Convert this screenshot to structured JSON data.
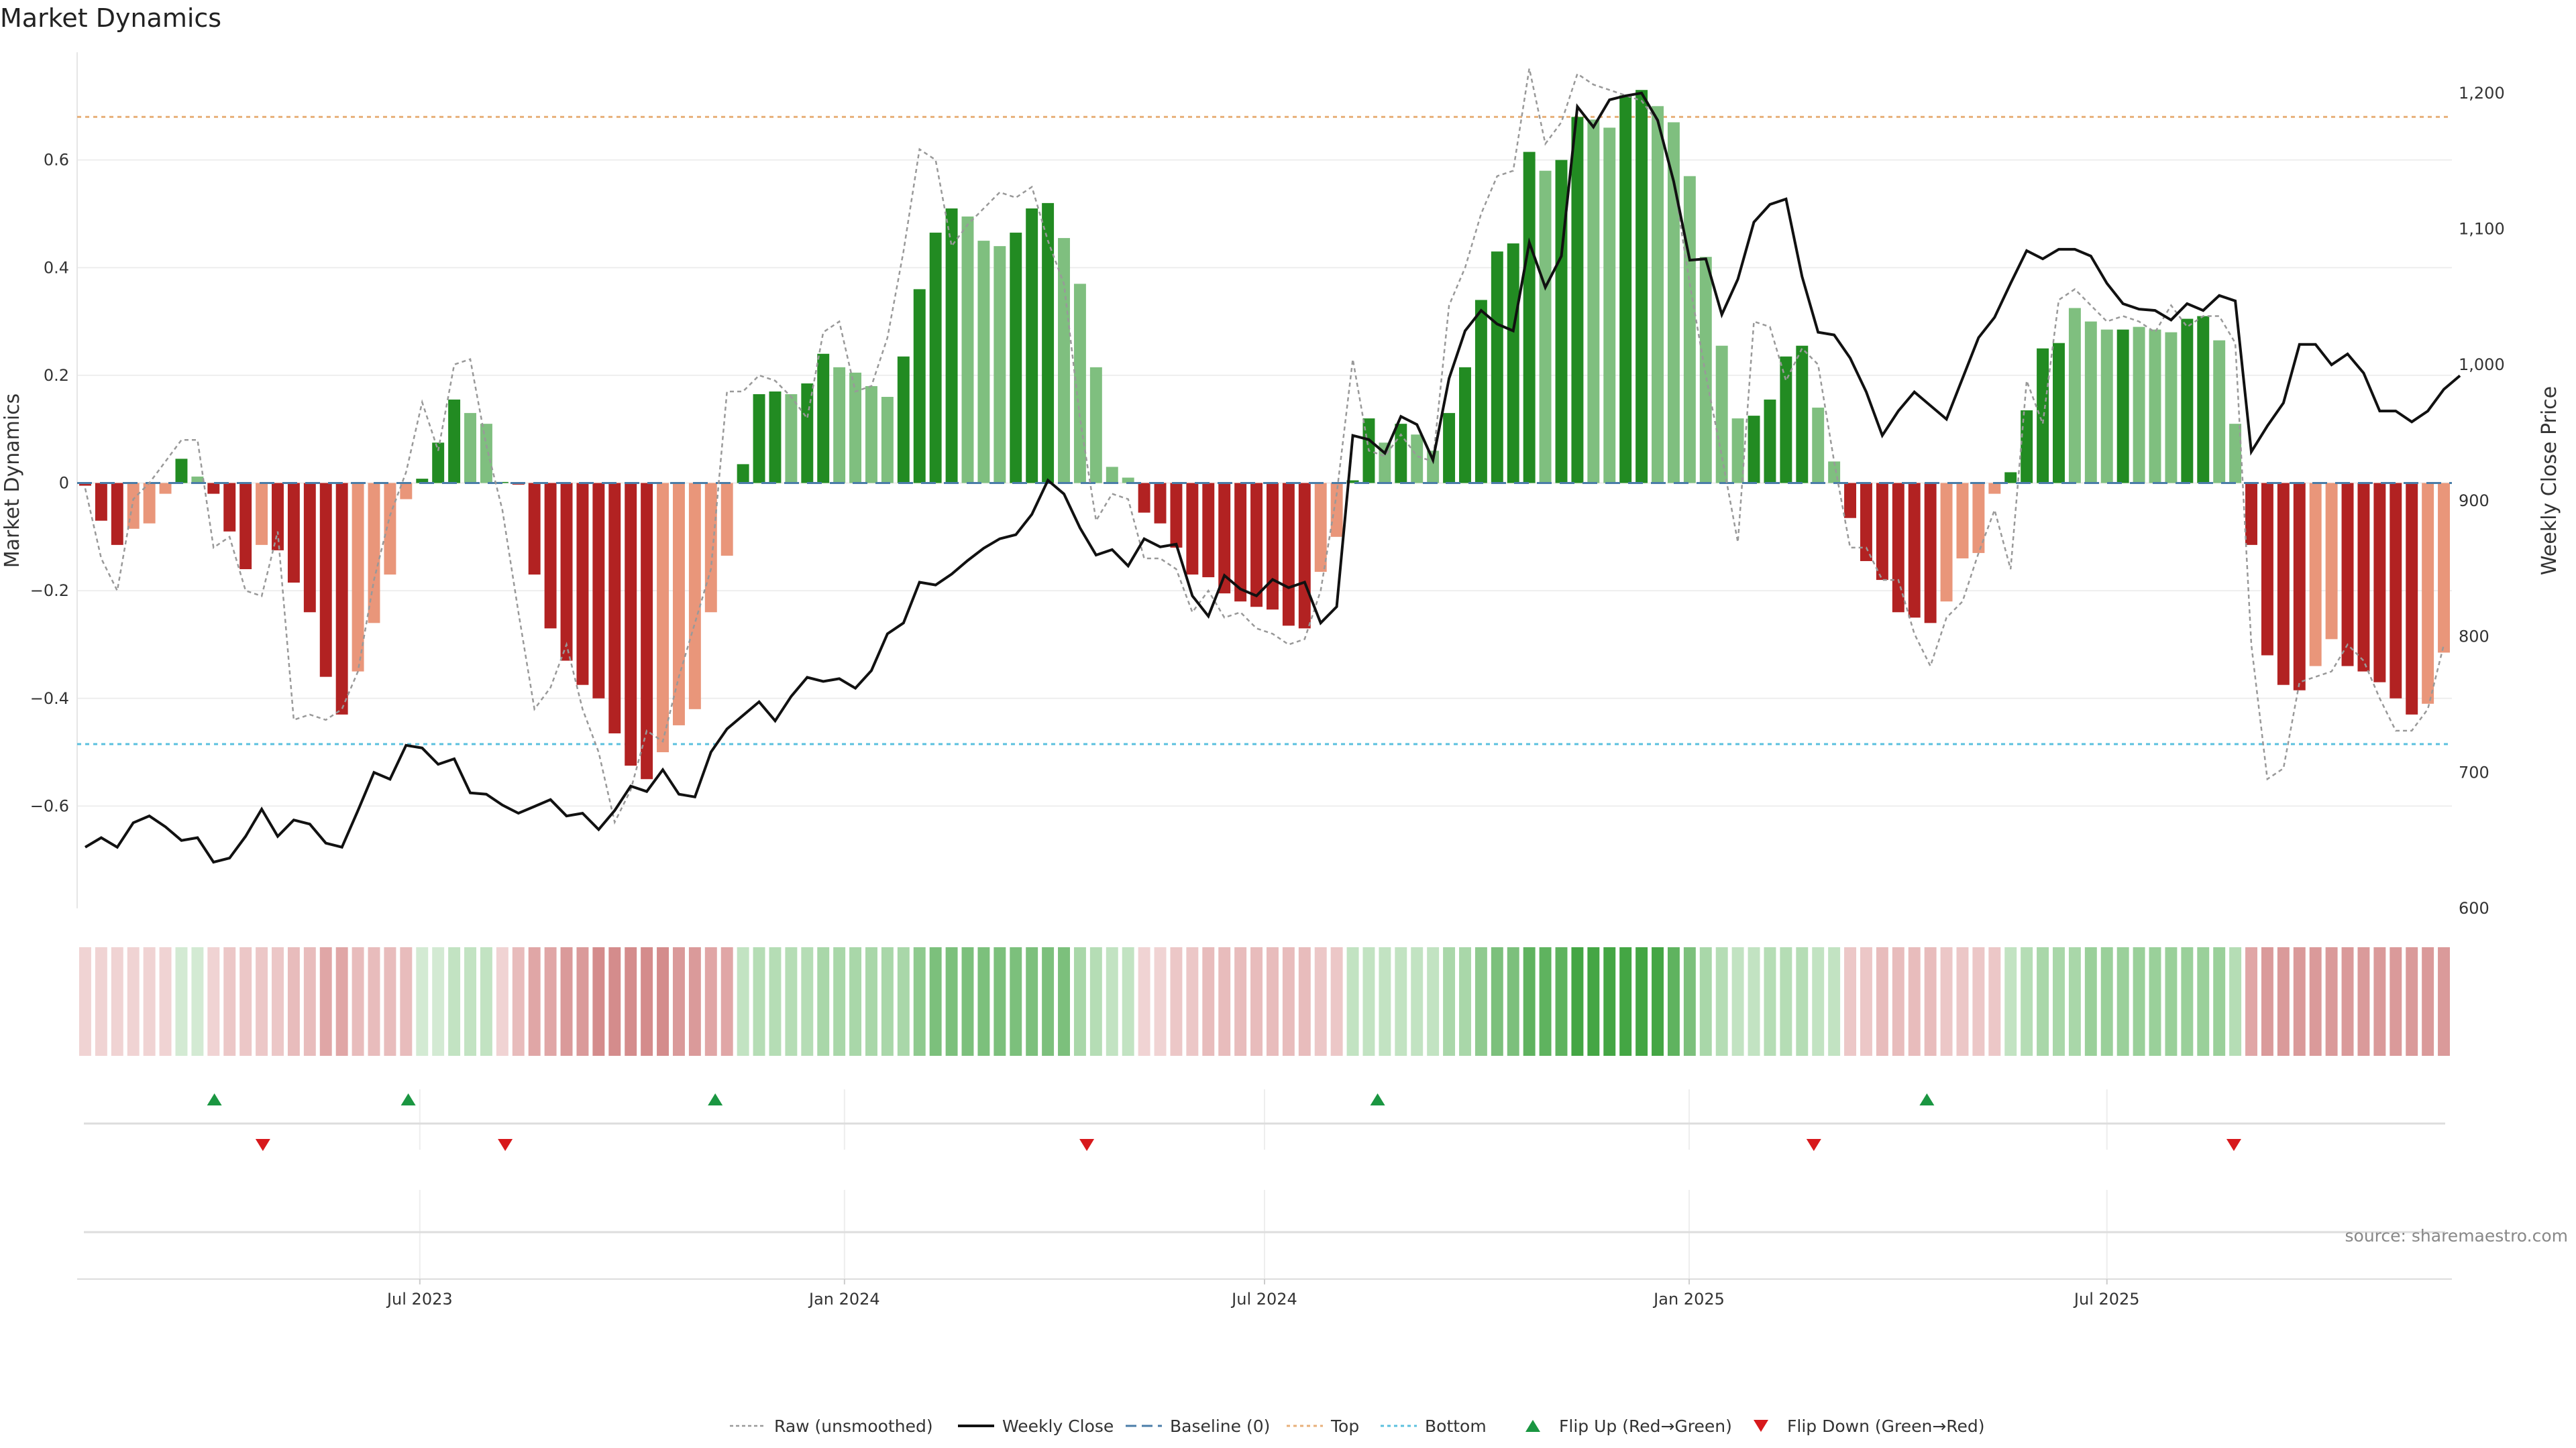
{
  "chart_data": {
    "type": "bar",
    "title": "Market Dynamics",
    "ylabel_left": "Market Dynamics",
    "ylabel_right": "Weekly Close Price",
    "source": "source: sharemaestro.com",
    "left_ylim": [
      -0.79,
      0.8
    ],
    "left_ticks": [
      -0.6,
      -0.4,
      -0.2,
      0,
      0.2,
      0.4,
      0.6
    ],
    "left_tick_labels": [
      "−0.6",
      "−0.4",
      "−0.2",
      "0",
      "0.2",
      "0.4",
      "0.6"
    ],
    "right_ylim": [
      600,
      1230
    ],
    "right_ticks": [
      600,
      700,
      800,
      900,
      1000,
      1100,
      1200
    ],
    "right_tick_labels": [
      "600",
      "700",
      "800",
      "900",
      "1,000",
      "1,100",
      "1,200"
    ],
    "x_start_date": "2023-02-06",
    "x_end_date": "2025-11-24",
    "x_ticks": [
      "2023-07-01",
      "2024-01-01",
      "2024-07-01",
      "2025-01-01",
      "2025-07-01"
    ],
    "x_tick_labels": [
      "Jul 2023",
      "Jan 2024",
      "Jul 2024",
      "Jan 2025",
      "Jul 2025"
    ],
    "top_line": 0.68,
    "bottom_line": -0.485,
    "bar_values": [
      -0.005,
      -0.07,
      -0.115,
      -0.085,
      -0.075,
      -0.02,
      0.045,
      0.012,
      -0.02,
      -0.09,
      -0.16,
      -0.115,
      -0.125,
      -0.185,
      -0.24,
      -0.36,
      -0.43,
      -0.35,
      -0.26,
      -0.17,
      -0.03,
      0.008,
      0.075,
      0.155,
      0.13,
      0.11,
      0.002,
      -0.003,
      -0.17,
      -0.27,
      -0.33,
      -0.375,
      -0.4,
      -0.465,
      -0.525,
      -0.55,
      -0.5,
      -0.45,
      -0.42,
      -0.24,
      -0.135,
      0.035,
      0.165,
      0.17,
      0.165,
      0.185,
      0.24,
      0.215,
      0.205,
      0.18,
      0.16,
      0.235,
      0.36,
      0.465,
      0.51,
      0.495,
      0.45,
      0.44,
      0.465,
      0.51,
      0.52,
      0.455,
      0.37,
      0.215,
      0.03,
      0.01,
      -0.055,
      -0.075,
      -0.12,
      -0.17,
      -0.175,
      -0.205,
      -0.22,
      -0.23,
      -0.235,
      -0.265,
      -0.27,
      -0.165,
      -0.1,
      0.005,
      0.12,
      0.075,
      0.11,
      0.09,
      0.06,
      0.13,
      0.215,
      0.34,
      0.43,
      0.445,
      0.615,
      0.58,
      0.6,
      0.68,
      0.675,
      0.66,
      0.72,
      0.73,
      0.7,
      0.67,
      0.57,
      0.42,
      0.255,
      0.12,
      0.125,
      0.155,
      0.235,
      0.255,
      0.14,
      0.04,
      -0.065,
      -0.145,
      -0.18,
      -0.24,
      -0.25,
      -0.26,
      -0.22,
      -0.14,
      -0.13,
      -0.02,
      0.02,
      0.135,
      0.25,
      0.26,
      0.325,
      0.3,
      0.285,
      0.285,
      0.29,
      0.285,
      0.28,
      0.305,
      0.31,
      0.265,
      0.11,
      -0.115,
      -0.32,
      -0.375,
      -0.385,
      -0.34,
      -0.29,
      -0.34,
      -0.35,
      -0.37,
      -0.4,
      -0.43,
      -0.41,
      -0.315
    ],
    "bar_colors": [
      "#b22222",
      "#b22222",
      "#b22222",
      "#e9967a",
      "#e9967a",
      "#e9967a",
      "#228b22",
      "#7fbf7f",
      "#b22222",
      "#b22222",
      "#b22222",
      "#e9967a",
      "#b22222",
      "#b22222",
      "#b22222",
      "#b22222",
      "#b22222",
      "#e9967a",
      "#e9967a",
      "#e9967a",
      "#e9967a",
      "#228b22",
      "#228b22",
      "#228b22",
      "#7fbf7f",
      "#7fbf7f",
      "#228b22",
      "#b22222",
      "#b22222",
      "#b22222",
      "#b22222",
      "#b22222",
      "#b22222",
      "#b22222",
      "#b22222",
      "#b22222",
      "#e9967a",
      "#e9967a",
      "#e9967a",
      "#e9967a",
      "#e9967a",
      "#228b22",
      "#228b22",
      "#228b22",
      "#7fbf7f",
      "#228b22",
      "#228b22",
      "#7fbf7f",
      "#7fbf7f",
      "#7fbf7f",
      "#7fbf7f",
      "#228b22",
      "#228b22",
      "#228b22",
      "#228b22",
      "#7fbf7f",
      "#7fbf7f",
      "#7fbf7f",
      "#228b22",
      "#228b22",
      "#228b22",
      "#7fbf7f",
      "#7fbf7f",
      "#7fbf7f",
      "#7fbf7f",
      "#7fbf7f",
      "#b22222",
      "#b22222",
      "#b22222",
      "#b22222",
      "#b22222",
      "#b22222",
      "#b22222",
      "#b22222",
      "#b22222",
      "#b22222",
      "#b22222",
      "#e9967a",
      "#e9967a",
      "#228b22",
      "#228b22",
      "#7fbf7f",
      "#228b22",
      "#7fbf7f",
      "#7fbf7f",
      "#228b22",
      "#228b22",
      "#228b22",
      "#228b22",
      "#228b22",
      "#228b22",
      "#7fbf7f",
      "#228b22",
      "#228b22",
      "#7fbf7f",
      "#7fbf7f",
      "#228b22",
      "#228b22",
      "#7fbf7f",
      "#7fbf7f",
      "#7fbf7f",
      "#7fbf7f",
      "#7fbf7f",
      "#7fbf7f",
      "#228b22",
      "#228b22",
      "#228b22",
      "#228b22",
      "#7fbf7f",
      "#7fbf7f",
      "#b22222",
      "#b22222",
      "#b22222",
      "#b22222",
      "#b22222",
      "#b22222",
      "#e9967a",
      "#e9967a",
      "#e9967a",
      "#e9967a",
      "#228b22",
      "#228b22",
      "#228b22",
      "#228b22",
      "#7fbf7f",
      "#7fbf7f",
      "#7fbf7f",
      "#228b22",
      "#7fbf7f",
      "#7fbf7f",
      "#7fbf7f",
      "#228b22",
      "#228b22",
      "#7fbf7f",
      "#7fbf7f",
      "#b22222",
      "#b22222",
      "#b22222",
      "#b22222",
      "#e9967a",
      "#e9967a",
      "#b22222",
      "#b22222",
      "#b22222",
      "#b22222",
      "#b22222",
      "#e9967a",
      "#e9967a"
    ],
    "raw_values": [
      -0.01,
      -0.14,
      -0.2,
      -0.03,
      0.0,
      0.04,
      0.08,
      0.08,
      -0.12,
      -0.1,
      -0.2,
      -0.21,
      -0.09,
      -0.44,
      -0.43,
      -0.44,
      -0.42,
      -0.35,
      -0.18,
      -0.06,
      0.02,
      0.15,
      0.06,
      0.22,
      0.23,
      0.07,
      -0.05,
      -0.24,
      -0.42,
      -0.38,
      -0.3,
      -0.42,
      -0.5,
      -0.63,
      -0.57,
      -0.46,
      -0.48,
      -0.36,
      -0.26,
      -0.16,
      0.17,
      0.17,
      0.2,
      0.19,
      0.16,
      0.12,
      0.28,
      0.3,
      0.17,
      0.18,
      0.27,
      0.43,
      0.62,
      0.6,
      0.44,
      0.48,
      0.51,
      0.54,
      0.53,
      0.55,
      0.45,
      0.37,
      0.12,
      -0.07,
      -0.02,
      -0.03,
      -0.14,
      -0.14,
      -0.16,
      -0.24,
      -0.2,
      -0.25,
      -0.24,
      -0.27,
      -0.28,
      -0.3,
      -0.29,
      -0.2,
      -0.02,
      0.23,
      0.06,
      0.05,
      0.09,
      0.05,
      0.04,
      0.33,
      0.4,
      0.5,
      0.57,
      0.58,
      0.77,
      0.63,
      0.67,
      0.76,
      0.74,
      0.73,
      0.72,
      0.71,
      0.67,
      0.56,
      0.37,
      0.2,
      0.05,
      -0.11,
      0.3,
      0.29,
      0.19,
      0.25,
      0.22,
      0.04,
      -0.12,
      -0.12,
      -0.18,
      -0.18,
      -0.28,
      -0.34,
      -0.25,
      -0.22,
      -0.13,
      -0.05,
      -0.16,
      0.19,
      0.11,
      0.34,
      0.36,
      0.33,
      0.3,
      0.31,
      0.3,
      0.28,
      0.33,
      0.29,
      0.31,
      0.31,
      0.26,
      -0.3,
      -0.55,
      -0.53,
      -0.37,
      -0.36,
      -0.35,
      -0.3,
      -0.33,
      -0.4,
      -0.46,
      -0.46,
      -0.42,
      -0.3
    ],
    "close_values": [
      645,
      652,
      645,
      663,
      668,
      660,
      650,
      652,
      634,
      637,
      653,
      673,
      653,
      665,
      662,
      648,
      645,
      672,
      700,
      695,
      720,
      718,
      706,
      710,
      685,
      684,
      676,
      670,
      675,
      680,
      668,
      670,
      658,
      672,
      690,
      686,
      702,
      684,
      682,
      715,
      732,
      742,
      752,
      738,
      756,
      770,
      767,
      769,
      762,
      775,
      802,
      810,
      840,
      838,
      846,
      856,
      865,
      872,
      875,
      890,
      915,
      905,
      880,
      860,
      864,
      852,
      872,
      866,
      868,
      830,
      815,
      845,
      835,
      830,
      842,
      836,
      840,
      810,
      822,
      948,
      945,
      935,
      962,
      956,
      930,
      990,
      1025,
      1040,
      1030,
      1025,
      1090,
      1057,
      1080,
      1190,
      1175,
      1195,
      1198,
      1200,
      1180,
      1135,
      1077,
      1078,
      1037,
      1063,
      1105,
      1118,
      1122,
      1065,
      1024,
      1022,
      1005,
      980,
      948,
      966,
      980,
      970,
      960,
      990,
      1020,
      1035,
      1060,
      1084,
      1078,
      1085,
      1085,
      1080,
      1060,
      1045,
      1041,
      1040,
      1033,
      1045,
      1040,
      1051,
      1047,
      936,
      955,
      972,
      1015,
      1015,
      1000,
      1008,
      994,
      966,
      966,
      958,
      966,
      982,
      992
    ],
    "regime_colors": [
      "#f0d3d3",
      "#f0d3d3",
      "#f0d3d3",
      "#f0d3d3",
      "#f0d3d3",
      "#f0d3d3",
      "#d3ead3",
      "#d3ead3",
      "#f0d3d3",
      "#ecc7c7",
      "#ecc7c7",
      "#ecc7c7",
      "#ecc7c7",
      "#e8bcbc",
      "#e8bcbc",
      "#e0a6a6",
      "#e0a6a6",
      "#e8bcbc",
      "#e8bcbc",
      "#e8bcbc",
      "#e8bcbc",
      "#d3ead3",
      "#d3ead3",
      "#c2e3c2",
      "#c2e3c2",
      "#c2e3c2",
      "#f0d3d3",
      "#e8bcbc",
      "#e0a6a6",
      "#e0a6a6",
      "#da9a9a",
      "#da9a9a",
      "#d48c8c",
      "#d48c8c",
      "#d48c8c",
      "#d48c8c",
      "#d48c8c",
      "#da9a9a",
      "#da9a9a",
      "#e0a6a6",
      "#e0a6a6",
      "#c2e3c2",
      "#b5ddb5",
      "#b5ddb5",
      "#b5ddb5",
      "#b5ddb5",
      "#a9d7a9",
      "#a9d7a9",
      "#a9d7a9",
      "#a9d7a9",
      "#a9d7a9",
      "#a9d7a9",
      "#8fca8f",
      "#7cc07c",
      "#7cc07c",
      "#7cc07c",
      "#7cc07c",
      "#7cc07c",
      "#7cc07c",
      "#7cc07c",
      "#7cc07c",
      "#7cc07c",
      "#a9d7a9",
      "#b5ddb5",
      "#c2e3c2",
      "#c2e3c2",
      "#f0d3d3",
      "#f0d3d3",
      "#ecc7c7",
      "#ecc7c7",
      "#e8bcbc",
      "#e8bcbc",
      "#e8bcbc",
      "#e8bcbc",
      "#e8bcbc",
      "#e8bcbc",
      "#e8bcbc",
      "#ecc7c7",
      "#ecc7c7",
      "#c2e3c2",
      "#c2e3c2",
      "#c2e3c2",
      "#c2e3c2",
      "#c2e3c2",
      "#c2e3c2",
      "#a9d7a9",
      "#a9d7a9",
      "#8fca8f",
      "#7cc07c",
      "#7cc07c",
      "#5fb35f",
      "#5fb35f",
      "#5fb35f",
      "#44a644",
      "#44a644",
      "#44a644",
      "#44a644",
      "#44a644",
      "#44a644",
      "#5fb35f",
      "#7cc07c",
      "#a9d7a9",
      "#b5ddb5",
      "#c2e3c2",
      "#c2e3c2",
      "#b5ddb5",
      "#b5ddb5",
      "#b5ddb5",
      "#c2e3c2",
      "#c2e3c2",
      "#ecc7c7",
      "#ecc7c7",
      "#e8bcbc",
      "#e8bcbc",
      "#e8bcbc",
      "#e8bcbc",
      "#ecc7c7",
      "#ecc7c7",
      "#ecc7c7",
      "#ecc7c7",
      "#c2e3c2",
      "#b5ddb5",
      "#a9d7a9",
      "#a9d7a9",
      "#a9d7a9",
      "#9ad09a",
      "#9ad09a",
      "#9ad09a",
      "#9ad09a",
      "#9ad09a",
      "#9ad09a",
      "#9ad09a",
      "#9ad09a",
      "#9ad09a",
      "#b5ddb5",
      "#e0a6a6",
      "#da9a9a",
      "#da9a9a",
      "#da9a9a",
      "#da9a9a",
      "#da9a9a",
      "#da9a9a",
      "#da9a9a",
      "#da9a9a",
      "#da9a9a",
      "#da9a9a",
      "#da9a9a",
      "#da9a9a"
    ],
    "flip_up_dates": [
      "2023-04-03",
      "2023-06-26",
      "2023-11-06",
      "2024-08-19",
      "2025-04-14"
    ],
    "flip_down_dates": [
      "2023-04-24",
      "2023-08-07",
      "2024-04-15",
      "2025-02-24",
      "2025-08-25"
    ],
    "legend": [
      "Raw (unsmoothed)",
      "Weekly Close",
      "Baseline (0)",
      "Top",
      "Bottom",
      "Flip Up (Red→Green)",
      "Flip Down (Green→Red)"
    ],
    "legend_position": "bottom-center",
    "colors": {
      "strong_green": "#228b22",
      "light_green": "#7fbf7f",
      "strong_red": "#b22222",
      "light_red": "#e9967a",
      "top_line": "#e8b07a",
      "bottom_line": "#5bc0de",
      "baseline": "#4a7da8",
      "close_line": "#111111",
      "raw_line": "#999999",
      "flip_up": "#1a9641",
      "flip_down": "#d7191c"
    }
  }
}
